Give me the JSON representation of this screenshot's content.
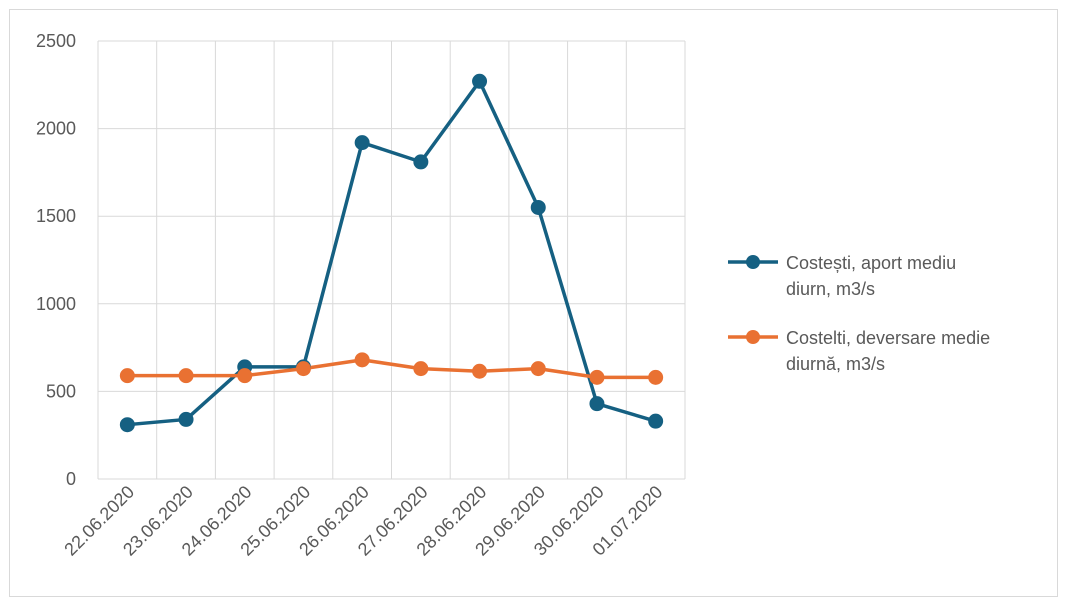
{
  "chart_data": {
    "type": "line",
    "title": "",
    "xlabel": "",
    "ylabel": "",
    "categories": [
      "22.06.2020",
      "23.06.2020",
      "24.06.2020",
      "25.06.2020",
      "26.06.2020",
      "27.06.2020",
      "28.06.2020",
      "29.06.2020",
      "30.06.2020",
      "01.07.2020"
    ],
    "ylim": [
      0,
      2500
    ],
    "yticks": [
      "0",
      "500",
      "1000",
      "1500",
      "2000",
      "2500"
    ],
    "grid": true,
    "legend_position": "right",
    "series": [
      {
        "name": "Costești, aport mediu diurn, m3/s",
        "legend_lines": [
          "Costești, aport mediu",
          "diurn, m3/s"
        ],
        "color": "#156082",
        "values": [
          310,
          340,
          640,
          640,
          1920,
          1810,
          2270,
          1550,
          430,
          330
        ]
      },
      {
        "name": "Costelti, deversare medie diurnă, m3/s",
        "legend_lines": [
          "Costelti, deversare medie",
          "diurnă, m3/s"
        ],
        "color": "#e97132",
        "values": [
          590,
          590,
          590,
          630,
          680,
          630,
          615,
          630,
          580,
          580
        ]
      }
    ]
  }
}
